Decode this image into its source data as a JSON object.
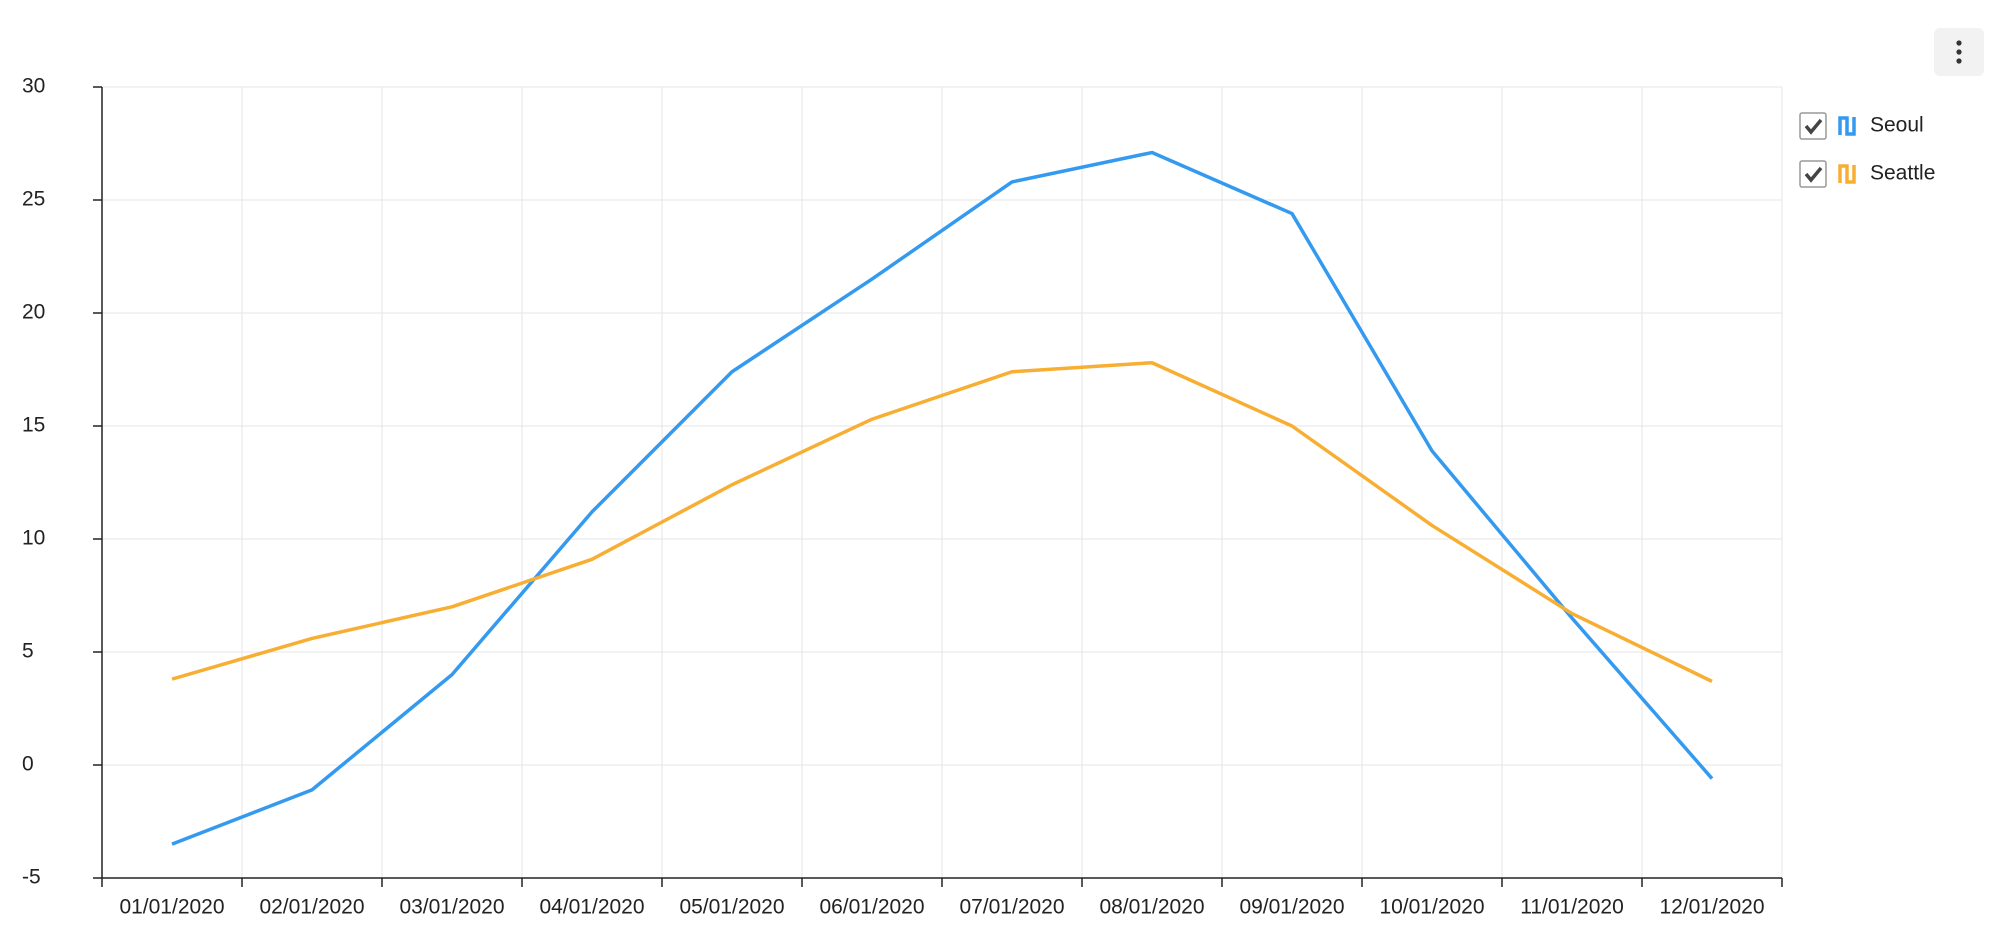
{
  "chart_data": {
    "type": "line",
    "categories": [
      "01/01/2020",
      "02/01/2020",
      "03/01/2020",
      "04/01/2020",
      "05/01/2020",
      "06/01/2020",
      "07/01/2020",
      "08/01/2020",
      "09/01/2020",
      "10/01/2020",
      "11/01/2020",
      "12/01/2020"
    ],
    "series": [
      {
        "name": "Seoul",
        "color": "#339af0",
        "values": [
          -3.5,
          -1.1,
          4.0,
          11.2,
          17.4,
          21.5,
          25.8,
          27.1,
          24.4,
          13.9,
          6.5,
          -0.6
        ]
      },
      {
        "name": "Seattle",
        "color": "#f7ae33",
        "values": [
          3.8,
          5.6,
          7.0,
          9.1,
          12.4,
          15.3,
          17.4,
          17.8,
          15.0,
          10.6,
          6.7,
          3.7
        ]
      }
    ],
    "ylim": [
      -5,
      30
    ],
    "yticks": [
      -5,
      0,
      5,
      10,
      15,
      20,
      25,
      30
    ],
    "grid": true,
    "legend": "top-right"
  }
}
